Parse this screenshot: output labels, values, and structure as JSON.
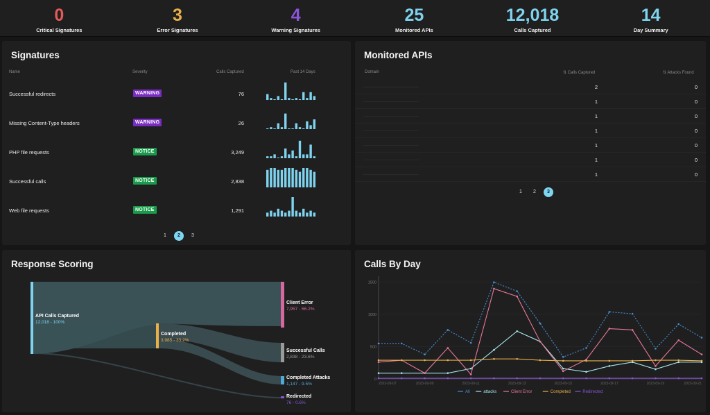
{
  "stats": [
    {
      "value": "0",
      "label": "Critical Signatures",
      "color": "#e45a5a"
    },
    {
      "value": "3",
      "label": "Error Signatures",
      "color": "#e8b04a"
    },
    {
      "value": "4",
      "label": "Warning Signatures",
      "color": "#8a55d8"
    },
    {
      "value": "25",
      "label": "Monitored APIs",
      "color": "#7fd3ee"
    },
    {
      "value": "12,018",
      "label": "Calls Captured",
      "color": "#7fd3ee"
    },
    {
      "value": "14",
      "label": "Day Summary",
      "color": "#7fd3ee"
    }
  ],
  "signatures": {
    "title": "Signatures",
    "headers": {
      "name": "Name",
      "severity": "Severity",
      "calls": "Calls Captured",
      "past": "Past 14 Days"
    },
    "rows": [
      {
        "name": "Successful redirects",
        "severity": "WARNING",
        "calls": "76",
        "spark": [
          3,
          1,
          0,
          2,
          0,
          9,
          1,
          0,
          1,
          0,
          4,
          1,
          4,
          2
        ]
      },
      {
        "name": "Missing Content-Type headers",
        "severity": "WARNING",
        "calls": "26",
        "spark": [
          0,
          1,
          0,
          3,
          1,
          8,
          0,
          0,
          3,
          1,
          0,
          4,
          2,
          5
        ]
      },
      {
        "name": "PHP file requests",
        "severity": "NOTICE",
        "calls": "3,249",
        "spark": [
          1,
          1,
          2,
          0,
          1,
          5,
          2,
          4,
          1,
          9,
          2,
          2,
          7,
          1
        ]
      },
      {
        "name": "Successful calls",
        "severity": "NOTICE",
        "calls": "2,838",
        "spark": [
          9,
          10,
          10,
          9,
          9,
          10,
          10,
          10,
          9,
          8,
          10,
          10,
          9,
          8
        ]
      },
      {
        "name": "Web file requests",
        "severity": "NOTICE",
        "calls": "1,291",
        "spark": [
          2,
          3,
          2,
          4,
          3,
          2,
          3,
          10,
          3,
          2,
          4,
          2,
          3,
          2
        ]
      }
    ],
    "severity_colors": {
      "WARNING": "#7a2cc2",
      "NOTICE": "#1a9a4b"
    },
    "spark_color": "#7fd3ee",
    "pages": [
      "1",
      "2",
      "3"
    ],
    "active_page": "2"
  },
  "apis": {
    "title": "Monitored APIs",
    "headers": {
      "domain": "Domain",
      "calls": "Calls Captured",
      "attacks": "Attacks Found"
    },
    "rows": [
      {
        "calls": "2",
        "attacks": "0"
      },
      {
        "calls": "1",
        "attacks": "0"
      },
      {
        "calls": "1",
        "attacks": "0"
      },
      {
        "calls": "1",
        "attacks": "0"
      },
      {
        "calls": "1",
        "attacks": "0"
      },
      {
        "calls": "1",
        "attacks": "0"
      },
      {
        "calls": "1",
        "attacks": "0"
      }
    ],
    "pages": [
      "1",
      "2",
      "3"
    ],
    "active_page": "3"
  },
  "scoring": {
    "title": "Response Scoring",
    "nodes": [
      {
        "id": "source",
        "label": "API Calls Captured",
        "sub": "12,018 - 100%",
        "color": "#7fd3ee"
      },
      {
        "id": "completed",
        "label": "Completed",
        "sub": "3,985 - 33.2%",
        "color": "#e8b04a"
      },
      {
        "id": "client_error",
        "label": "Client Error",
        "sub": "7,957 - 66.2%",
        "color": "#d8679f"
      },
      {
        "id": "successful",
        "label": "Successful Calls",
        "sub": "2,838 - 23.6%",
        "color": "#9a9a9a"
      },
      {
        "id": "attacks",
        "label": "Completed Attacks",
        "sub": "1,147 - 9.5%",
        "color": "#4fa8d8"
      },
      {
        "id": "redirected",
        "label": "Redirected",
        "sub": "76 - 0.6%",
        "color": "#8a55d8"
      }
    ]
  },
  "calls_by_day": {
    "title": "Calls By Day",
    "chart_data": {
      "type": "line",
      "x_ticks": [
        "2023-09-07",
        "2023-09-09",
        "2023-09-11",
        "2023-09-13",
        "2023-09-15",
        "2023-09-17",
        "2023-09-19",
        "2023-09-21"
      ],
      "x": [
        "09-07",
        "09-08",
        "09-09",
        "09-10",
        "09-11",
        "09-12",
        "09-13",
        "09-14",
        "09-15",
        "09-16",
        "09-17",
        "09-18",
        "09-19",
        "09-20",
        "09-21"
      ],
      "y_ticks": [
        0,
        500,
        1000,
        1500
      ],
      "ylim": [
        0,
        1550
      ],
      "series": [
        {
          "name": "All",
          "color": "#4a8fd8",
          "dash": true,
          "values": [
            550,
            550,
            380,
            760,
            560,
            1500,
            1360,
            860,
            340,
            480,
            1040,
            1010,
            470,
            850,
            640
          ]
        },
        {
          "name": "attacks",
          "color": "#a8e8f0",
          "dash": false,
          "values": [
            90,
            90,
            90,
            90,
            160,
            450,
            740,
            580,
            160,
            110,
            200,
            260,
            150,
            260,
            260
          ]
        },
        {
          "name": "Client Error",
          "color": "#e8789a",
          "dash": false,
          "values": [
            260,
            290,
            90,
            480,
            70,
            1400,
            1280,
            580,
            120,
            300,
            780,
            760,
            200,
            600,
            380
          ]
        },
        {
          "name": "Completed",
          "color": "#e8b04a",
          "dash": false,
          "values": [
            290,
            290,
            290,
            290,
            290,
            310,
            310,
            290,
            280,
            280,
            280,
            280,
            290,
            290,
            280
          ]
        },
        {
          "name": "Redirected",
          "color": "#8a55d8",
          "dash": false,
          "values": [
            10,
            10,
            10,
            10,
            10,
            10,
            10,
            10,
            10,
            10,
            10,
            10,
            10,
            10,
            10
          ]
        }
      ]
    }
  }
}
